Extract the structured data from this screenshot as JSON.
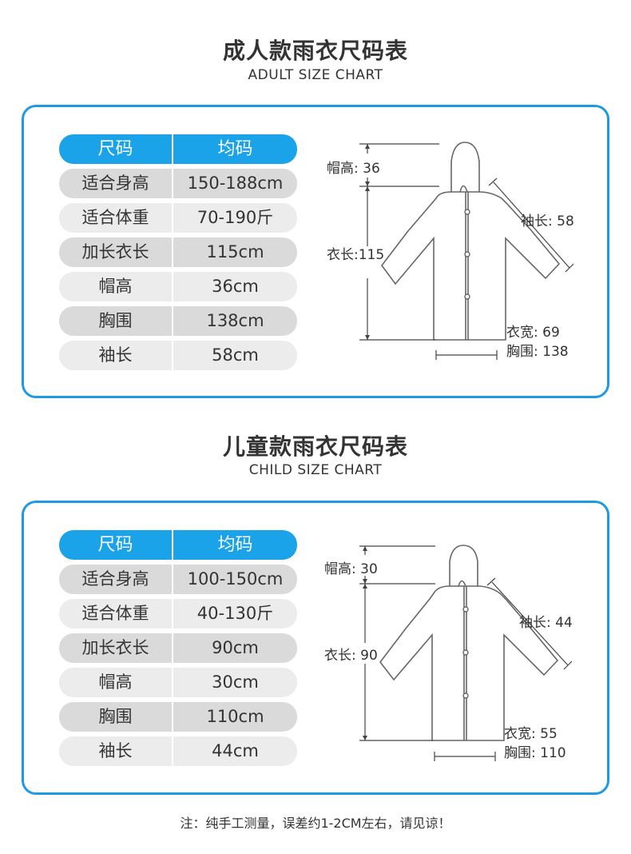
{
  "adult": {
    "title": "成人款雨衣尺码表",
    "subtitle": "ADULT SIZE CHART",
    "header": {
      "col1": "尺码",
      "col2": "均码"
    },
    "rows": [
      {
        "label": "适合身高",
        "value": "150-188cm"
      },
      {
        "label": "适合体重",
        "value": "70-190斤"
      },
      {
        "label": "加长衣长",
        "value": "115cm"
      },
      {
        "label": "帽高",
        "value": "36cm"
      },
      {
        "label": "胸围",
        "value": "138cm"
      },
      {
        "label": "袖长",
        "value": "58cm"
      }
    ],
    "diagram": {
      "hood": "帽高: 36",
      "length": "衣长:115",
      "sleeve": "袖长: 58",
      "width": "衣宽: 69",
      "chest": "胸围: 138"
    }
  },
  "child": {
    "title": "儿童款雨衣尺码表",
    "subtitle": "CHILD SIZE CHART",
    "header": {
      "col1": "尺码",
      "col2": "均码"
    },
    "rows": [
      {
        "label": "适合身高",
        "value": "100-150cm"
      },
      {
        "label": "适合体重",
        "value": "40-130斤"
      },
      {
        "label": "加长衣长",
        "value": "90cm"
      },
      {
        "label": "帽高",
        "value": "30cm"
      },
      {
        "label": "胸围",
        "value": "110cm"
      },
      {
        "label": "袖长",
        "value": "44cm"
      }
    ],
    "diagram": {
      "hood": "帽高: 30",
      "length": "衣长: 90",
      "sleeve": "袖长: 44",
      "width": "衣宽: 55",
      "chest": "胸围: 110"
    }
  },
  "note": "注：纯手工测量，误差约1-2CM左右，请见谅！",
  "colors": {
    "accent": "#1e9be0",
    "header": "#1aa3e8",
    "row_dark": "#dadada",
    "row_light": "#ececec"
  }
}
